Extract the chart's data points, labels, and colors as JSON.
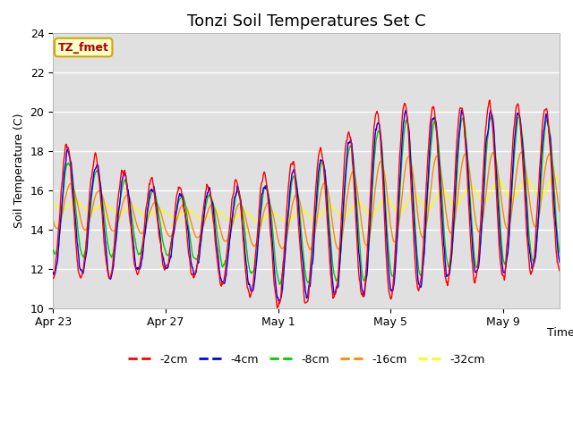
{
  "title": "Tonzi Soil Temperatures Set C",
  "xlabel": "Time",
  "ylabel": "Soil Temperature (C)",
  "ylim": [
    10,
    24
  ],
  "yticks": [
    10,
    12,
    14,
    16,
    18,
    20,
    22,
    24
  ],
  "x_tick_labels": [
    "Apr 23",
    "Apr 27",
    "May 1",
    "May 5",
    "May 9"
  ],
  "x_tick_positions": [
    0,
    4,
    8,
    12,
    16
  ],
  "annotation_text": "TZ_fmet",
  "annotation_bg": "#ffffcc",
  "annotation_border": "#ccaa00",
  "plot_bg": "#e0e0e0",
  "line_colors": {
    "-2cm": "#ff0000",
    "-4cm": "#0000ff",
    "-8cm": "#00cc00",
    "-16cm": "#ff8800",
    "-32cm": "#ffff00"
  },
  "n_days": 18,
  "xlim": [
    0,
    18
  ]
}
